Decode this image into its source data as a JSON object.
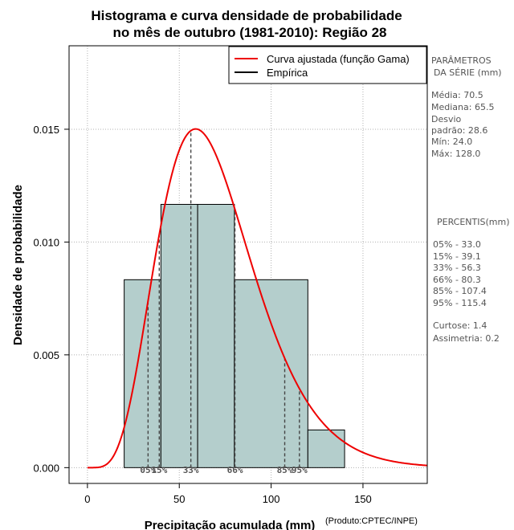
{
  "chart_data": {
    "type": "bar",
    "title_line1": "Histograma e curva densidade de probabilidade",
    "title_line2": "no mês de outubro (1981-2010): Região 28",
    "xlabel": "Precipitação acumulada (mm)",
    "ylabel": "Densidade de probabilidade",
    "credit": "(Produto:CPTEC/INPE)",
    "xlim": [
      -10,
      185
    ],
    "ylim": [
      -0.0007,
      0.0187
    ],
    "xticks": [
      0,
      50,
      100,
      150
    ],
    "xtick_labels": [
      "0",
      "50",
      "100",
      "150"
    ],
    "yticks": [
      0.0,
      0.005,
      0.01,
      0.015
    ],
    "ytick_labels": [
      "0.000",
      "0.005",
      "0.010",
      "0.015"
    ],
    "grid": true,
    "bins": [
      {
        "start": 20,
        "end": 40,
        "density": 0.00833
      },
      {
        "start": 40,
        "end": 60,
        "density": 0.01167
      },
      {
        "start": 60,
        "end": 80,
        "density": 0.01167
      },
      {
        "start": 80,
        "end": 120,
        "density": 0.00833
      },
      {
        "start": 120,
        "end": 140,
        "density": 0.00167
      }
    ],
    "gamma_fit": {
      "name": "Curva ajustada (função Gama)",
      "mean": 70.5,
      "sd": 28.6,
      "color": "#ee0000"
    },
    "empirical": {
      "name": "Empírica",
      "color": "#000000"
    },
    "bar_color": "#b4cecc",
    "percentile_marks": [
      {
        "value": 33.0,
        "label": "05%"
      },
      {
        "value": 39.1,
        "label": "15%"
      },
      {
        "value": 56.3,
        "label": "33%"
      },
      {
        "value": 80.3,
        "label": "66%"
      },
      {
        "value": 107.4,
        "label": "85%"
      },
      {
        "value": 115.4,
        "label": "95%"
      }
    ],
    "legend": {
      "position": "top-right",
      "entries": [
        "Curva ajustada (função Gama)",
        "Empírica"
      ]
    }
  },
  "sidebar": {
    "params_title_1": "PARÂMETROS",
    "params_title_2": "DA SÉRIE (mm)",
    "params": [
      "Média:  70.5",
      "Mediana:  65.5",
      "Desvio",
      "padrão:  28.6",
      "Mín:  24.0",
      "Máx:  128.0"
    ],
    "percentis_title": "PERCENTIS(mm)",
    "percentis": [
      "05% -   33.0",
      "15% -   39.1",
      "33% -   56.3",
      "66% -   80.3",
      "85% -   107.4",
      "95% -   115.4"
    ],
    "stats": [
      "Curtose:  1.4",
      "Assimetria:  0.2"
    ]
  }
}
